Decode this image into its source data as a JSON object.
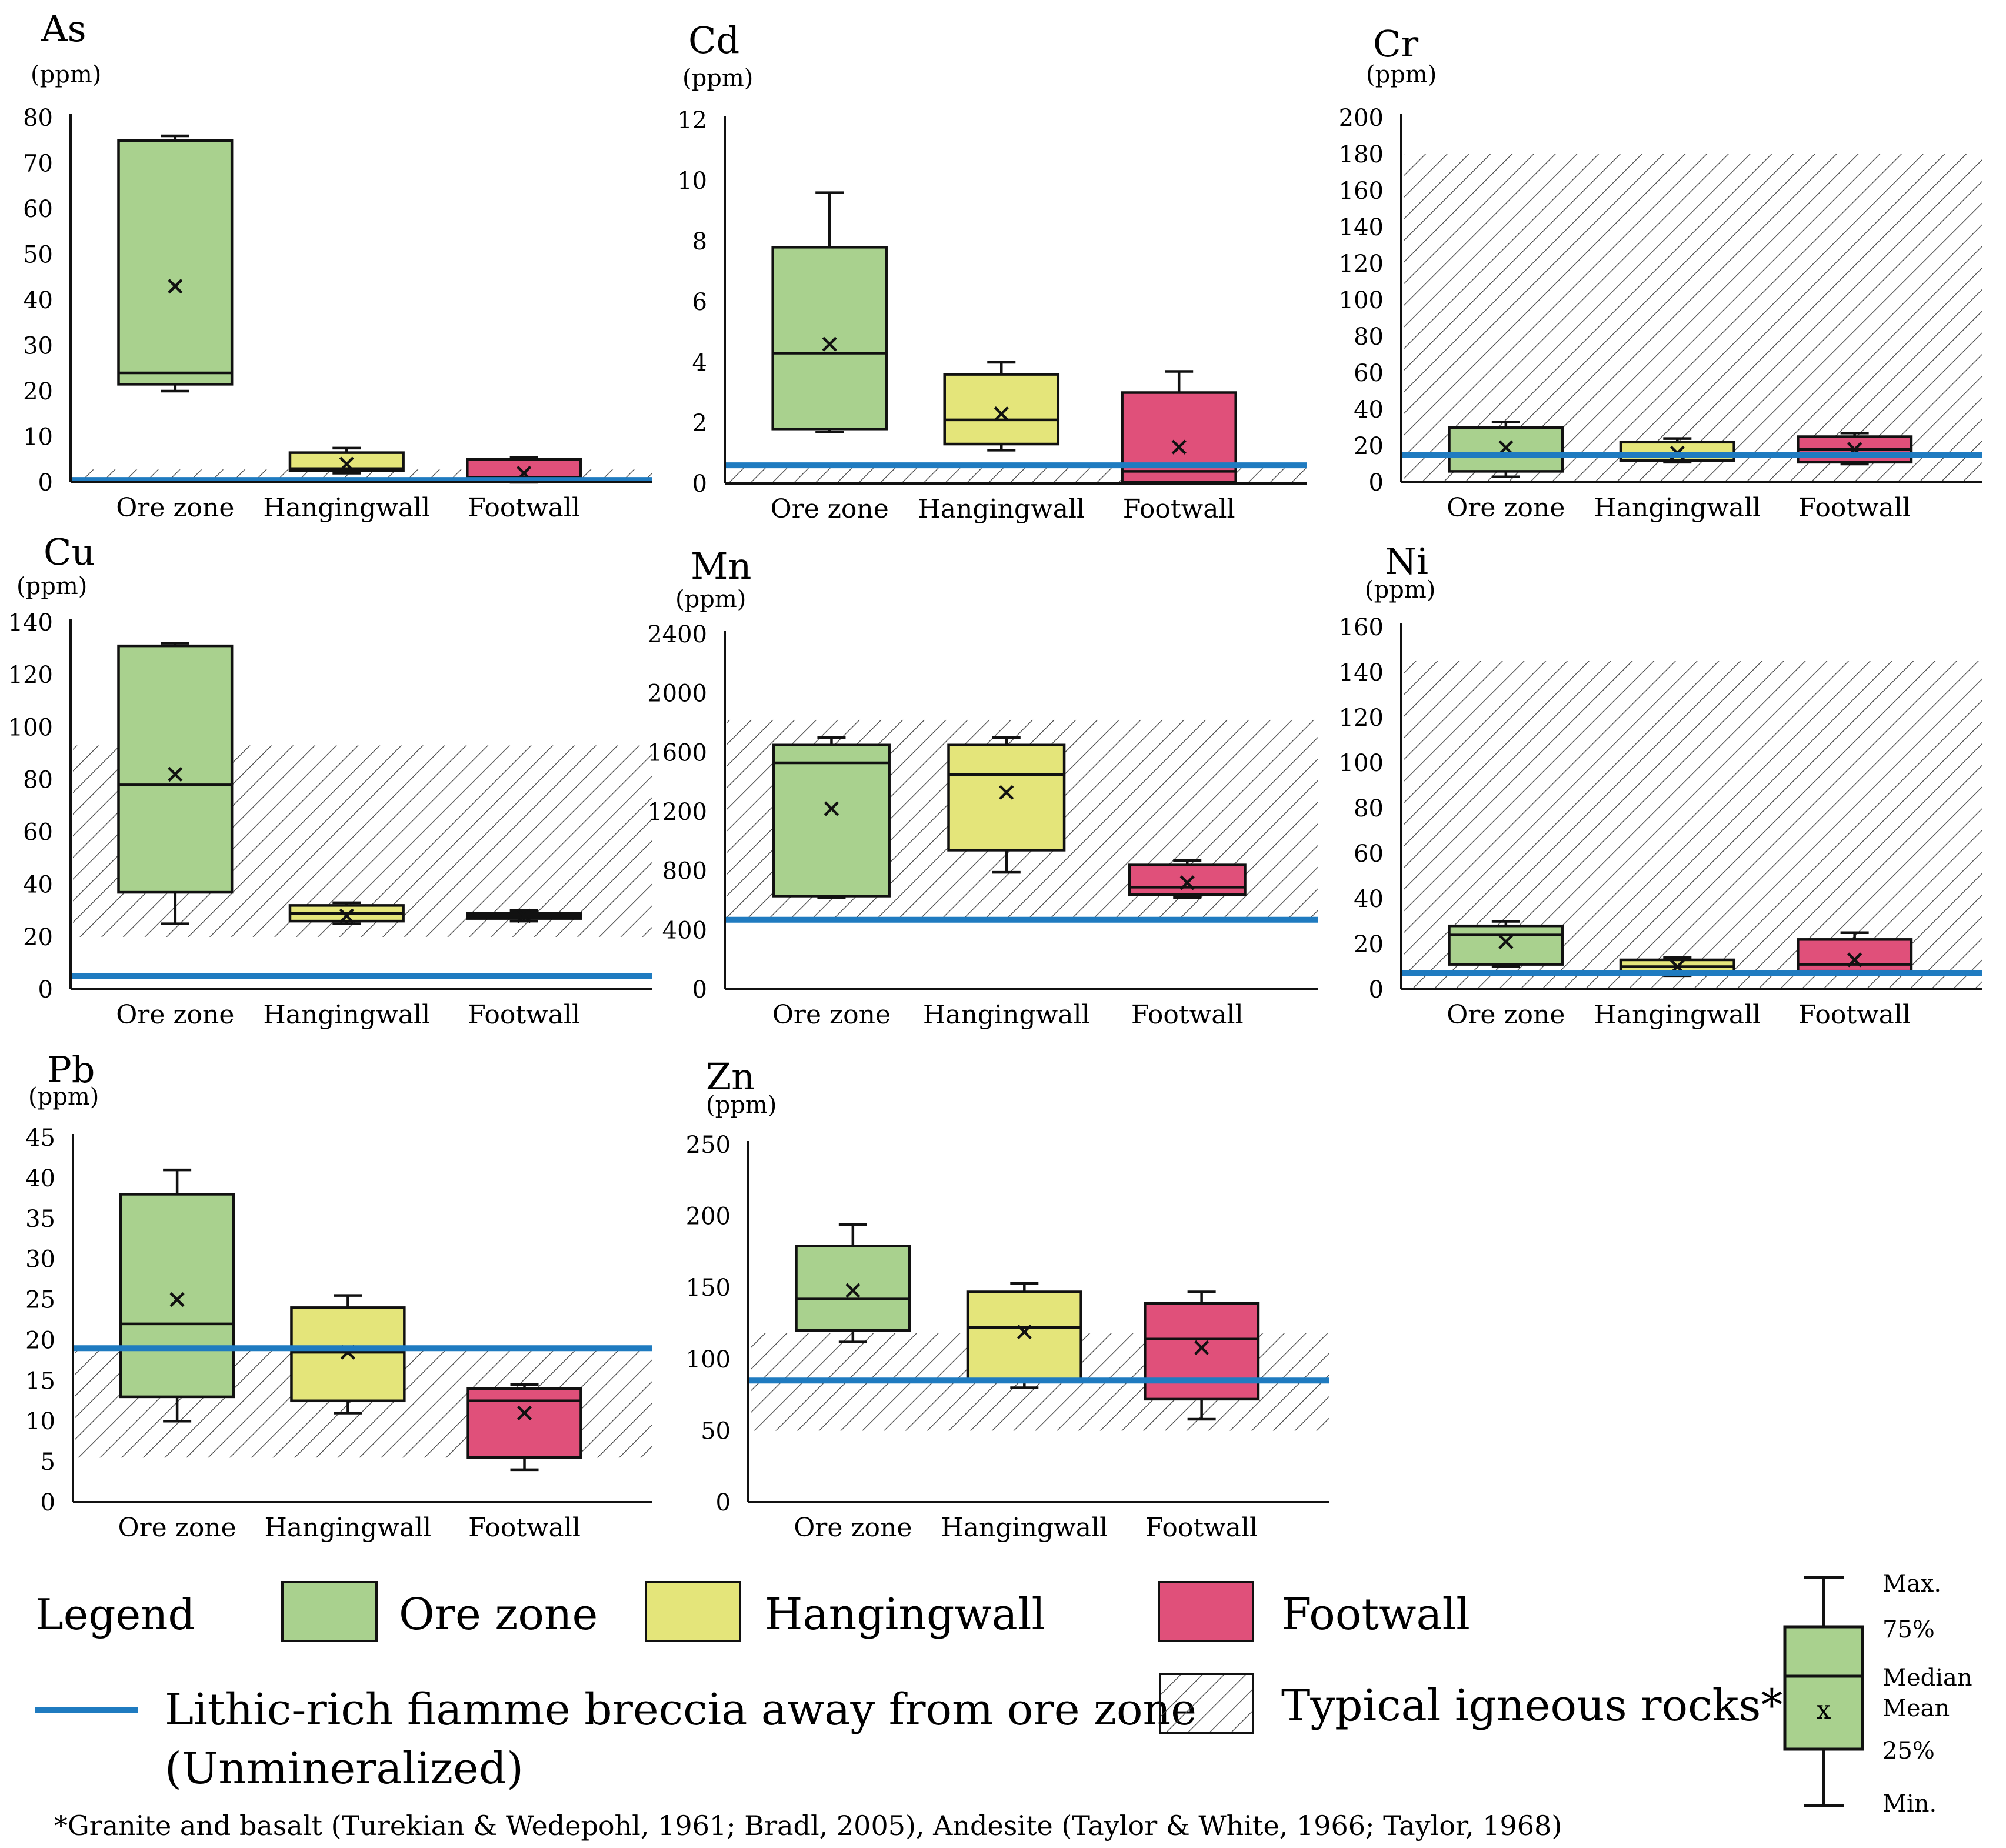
{
  "chart_data": [
    {
      "type": "box",
      "title": "As",
      "unit": "(ppm)",
      "categories": [
        "Ore zone",
        "Hangingwall",
        "Footwall"
      ],
      "ylim": [
        0,
        80
      ],
      "yticks": [
        0,
        10,
        20,
        30,
        40,
        50,
        60,
        70,
        80
      ],
      "boxes": [
        {
          "min": 20,
          "q1": 21.5,
          "median": 24,
          "q3": 75,
          "max": 76,
          "mean": 43
        },
        {
          "min": 2,
          "q1": 2.5,
          "median": 3,
          "q3": 6.5,
          "max": 7.5,
          "mean": 4
        },
        {
          "min": 0,
          "q1": 0.3,
          "median": 1,
          "q3": 5,
          "max": 5.5,
          "mean": 2
        }
      ],
      "reference_line": 0.5,
      "igneous_range": [
        0,
        2.8
      ]
    },
    {
      "type": "box",
      "title": "Cd",
      "unit": "(ppm)",
      "categories": [
        "Ore zone",
        "Hangingwall",
        "Footwall"
      ],
      "ylim": [
        0,
        12
      ],
      "yticks": [
        0,
        2,
        4,
        6,
        8,
        10,
        12
      ],
      "boxes": [
        {
          "min": 1.7,
          "q1": 1.8,
          "median": 4.3,
          "q3": 7.8,
          "max": 9.6,
          "mean": 4.6
        },
        {
          "min": 1.1,
          "q1": 1.3,
          "median": 2.1,
          "q3": 3.6,
          "max": 4.0,
          "mean": 2.3
        },
        {
          "min": 0,
          "q1": 0.05,
          "median": 0.4,
          "q3": 3.0,
          "max": 3.7,
          "mean": 1.2
        }
      ],
      "reference_line": 0.6,
      "igneous_range": [
        0,
        0.5
      ]
    },
    {
      "type": "box",
      "title": "Cr",
      "unit": "(ppm)",
      "categories": [
        "Ore zone",
        "Hangingwall",
        "Footwall"
      ],
      "ylim": [
        0,
        200
      ],
      "yticks": [
        0,
        20,
        40,
        60,
        80,
        100,
        120,
        140,
        160,
        180,
        200
      ],
      "boxes": [
        {
          "min": 3,
          "q1": 6,
          "median": 15,
          "q3": 30,
          "max": 33,
          "mean": 19
        },
        {
          "min": 11,
          "q1": 12,
          "median": 15,
          "q3": 22,
          "max": 24,
          "mean": 16
        },
        {
          "min": 10,
          "q1": 11,
          "median": 18,
          "q3": 25,
          "max": 27,
          "mean": 18
        }
      ],
      "reference_line": 15,
      "igneous_range": [
        0,
        180
      ]
    },
    {
      "type": "box",
      "title": "Cu",
      "unit": "(ppm)",
      "categories": [
        "Ore zone",
        "Hangingwall",
        "Footwall"
      ],
      "ylim": [
        0,
        140
      ],
      "yticks": [
        0,
        20,
        40,
        60,
        80,
        100,
        120,
        140
      ],
      "boxes": [
        {
          "min": 25,
          "q1": 37,
          "median": 78,
          "q3": 131,
          "max": 132,
          "mean": 82
        },
        {
          "min": 25,
          "q1": 26,
          "median": 29,
          "q3": 32,
          "max": 33,
          "mean": 28
        },
        {
          "min": 26,
          "q1": 27,
          "median": 28,
          "q3": 29,
          "max": 30,
          "mean": 28
        }
      ],
      "reference_line": 5,
      "igneous_range": [
        20,
        93
      ]
    },
    {
      "type": "box",
      "title": "Mn",
      "unit": "(ppm)",
      "categories": [
        "Ore zone",
        "Hangingwall",
        "Footwall"
      ],
      "ylim": [
        0,
        2400
      ],
      "yticks": [
        0,
        400,
        800,
        1200,
        1600,
        2000,
        2400
      ],
      "boxes": [
        {
          "min": 620,
          "q1": 630,
          "median": 1530,
          "q3": 1650,
          "max": 1700,
          "mean": 1220
        },
        {
          "min": 790,
          "q1": 940,
          "median": 1450,
          "q3": 1650,
          "max": 1700,
          "mean": 1330
        },
        {
          "min": 620,
          "q1": 640,
          "median": 690,
          "q3": 840,
          "max": 870,
          "mean": 720
        }
      ],
      "reference_line": 470,
      "igneous_range": [
        470,
        1820
      ]
    },
    {
      "type": "box",
      "title": "Ni",
      "unit": "(ppm)",
      "categories": [
        "Ore zone",
        "Hangingwall",
        "Footwall"
      ],
      "ylim": [
        0,
        160
      ],
      "yticks": [
        0,
        20,
        40,
        60,
        80,
        100,
        120,
        140,
        160
      ],
      "boxes": [
        {
          "min": 10,
          "q1": 11,
          "median": 24,
          "q3": 28,
          "max": 30,
          "mean": 21
        },
        {
          "min": 6,
          "q1": 7,
          "median": 10,
          "q3": 13,
          "max": 14,
          "mean": 10
        },
        {
          "min": 7,
          "q1": 8,
          "median": 11,
          "q3": 22,
          "max": 25,
          "mean": 13
        }
      ],
      "reference_line": 7,
      "igneous_range": [
        0,
        145
      ]
    },
    {
      "type": "box",
      "title": "Pb",
      "unit": "(ppm)",
      "categories": [
        "Ore zone",
        "Hangingwall",
        "Footwall"
      ],
      "ylim": [
        0,
        45
      ],
      "yticks": [
        0,
        5,
        10,
        15,
        20,
        25,
        30,
        35,
        40,
        45
      ],
      "boxes": [
        {
          "min": 10,
          "q1": 13,
          "median": 22,
          "q3": 38,
          "max": 41,
          "mean": 25
        },
        {
          "min": 11,
          "q1": 12.5,
          "median": 18.5,
          "q3": 24,
          "max": 25.5,
          "mean": 18.5
        },
        {
          "min": 4,
          "q1": 5.5,
          "median": 12.5,
          "q3": 14,
          "max": 14.5,
          "mean": 11
        }
      ],
      "reference_line": 19,
      "igneous_range": [
        5.5,
        19
      ]
    },
    {
      "type": "box",
      "title": "Zn",
      "unit": "(ppm)",
      "categories": [
        "Ore zone",
        "Hangingwall",
        "Footwall"
      ],
      "ylim": [
        0,
        250
      ],
      "yticks": [
        0,
        50,
        100,
        150,
        200,
        250
      ],
      "boxes": [
        {
          "min": 112,
          "q1": 120,
          "median": 142,
          "q3": 179,
          "max": 194,
          "mean": 148
        },
        {
          "min": 80,
          "q1": 85,
          "median": 122,
          "q3": 147,
          "max": 153,
          "mean": 119
        },
        {
          "min": 58,
          "q1": 72,
          "median": 114,
          "q3": 139,
          "max": 147,
          "mean": 108
        }
      ],
      "reference_line": 85,
      "igneous_range": [
        50,
        118
      ]
    }
  ],
  "colors": {
    "ore_zone": "#a9d18e",
    "hangingwall": "#e4e57a",
    "footwall": "#e0507a",
    "reference_line": "#1f7bc0",
    "outline": "#111111"
  },
  "legend": {
    "title": "Legend",
    "ore_zone": "Ore zone",
    "hangingwall": "Hangingwall",
    "footwall": "Footwall",
    "line_label_1": "Lithic-rich fiamme breccia away from ore zone",
    "line_label_2": "(Unmineralized)",
    "hatch_label": "Typical igneous rocks*"
  },
  "box_key": {
    "max": "Max.",
    "q3": "75%",
    "median": "Median",
    "mean": "Mean",
    "q1": "25%",
    "min": "Min.",
    "mean_marker": "x"
  },
  "footnote": "*Granite and basalt (Turekian & Wedepohl, 1961; Bradl, 2005), Andesite (Taylor & White, 1966; Taylor, 1968)"
}
